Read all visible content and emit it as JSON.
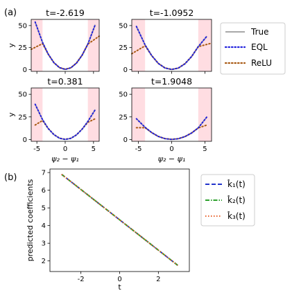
{
  "panel_labels": [
    "(a)",
    "(b)"
  ],
  "colors": {
    "true": "#a8a8a8",
    "eql": "#2222dd",
    "relu": "#a85a14",
    "shade": "#ffdde2",
    "k1": "#2233cc",
    "k2": "#2ca02c",
    "k3": "#e8602a"
  },
  "chart_data": [
    {
      "type": "line",
      "title": "t=-2.619",
      "xlabel": "",
      "ylabel": "y",
      "xlim": [
        -6,
        6
      ],
      "ylim": [
        -2,
        57
      ],
      "x_ticks": [],
      "y_ticks": [
        "0",
        "25",
        "50"
      ],
      "shaded_x_ranges": [
        [
          -6,
          -4
        ],
        [
          4,
          6
        ]
      ],
      "true_curve": {
        "x": [
          -5.3,
          -4,
          -3,
          -2,
          -1,
          0,
          1,
          2,
          3,
          4,
          5.3
        ],
        "y": [
          54,
          31,
          17.6,
          7.9,
          2.2,
          0.2,
          2.0,
          7.4,
          16.4,
          29,
          51
        ]
      },
      "eql_curve": {
        "x": [
          -5.3,
          -4,
          -3,
          -2,
          -1,
          0,
          1,
          2,
          3,
          4,
          5.3
        ],
        "y": [
          54,
          31,
          17.6,
          7.9,
          2.2,
          0.2,
          2.0,
          7.4,
          16.4,
          29,
          51
        ]
      },
      "relu_curve": {
        "x": [
          -6,
          -4,
          -3,
          -2,
          -1,
          0,
          1,
          2,
          3,
          4,
          6
        ],
        "y": [
          23,
          29.5,
          17.5,
          7.8,
          2.3,
          0.4,
          2.1,
          7.5,
          16.6,
          29,
          38
        ]
      }
    },
    {
      "type": "line",
      "title": "t=-1.0952",
      "xlabel": "",
      "ylabel": "",
      "xlim": [
        -6,
        6
      ],
      "ylim": [
        -2,
        57
      ],
      "x_ticks": [],
      "y_ticks": [
        "0",
        "25",
        "50"
      ],
      "shaded_x_ranges": [
        [
          -6,
          -4
        ],
        [
          4,
          6
        ]
      ],
      "true_curve": {
        "x": [
          -5.3,
          -4,
          -3,
          -2,
          -1,
          0,
          1,
          2,
          3,
          4,
          5.3
        ],
        "y": [
          49,
          28,
          15.8,
          7,
          1.8,
          0.1,
          1.7,
          6.6,
          14.8,
          26,
          38
        ]
      },
      "eql_curve": {
        "x": [
          -5.3,
          -4,
          -3,
          -2,
          -1,
          0,
          1,
          2,
          3,
          4,
          5.3
        ],
        "y": [
          49,
          28,
          15.8,
          7,
          1.8,
          0.1,
          1.7,
          6.6,
          14.8,
          26,
          38
        ]
      },
      "relu_curve": {
        "x": [
          -6,
          -4,
          -3,
          -2,
          -1,
          0,
          1,
          2,
          3,
          4,
          6
        ],
        "y": [
          18,
          27,
          15.8,
          7,
          1.9,
          0.2,
          1.8,
          6.8,
          14.9,
          26,
          30
        ]
      }
    },
    {
      "type": "line",
      "title": "t=0.381",
      "xlabel": "ψ₂ − ψ₁",
      "ylabel": "y",
      "xlim": [
        -6,
        6
      ],
      "ylim": [
        -2,
        57
      ],
      "x_ticks": [
        "-5",
        "0",
        "5"
      ],
      "y_ticks": [
        "0",
        "25",
        "50"
      ],
      "shaded_x_ranges": [
        [
          -6,
          -4
        ],
        [
          4,
          6
        ]
      ],
      "true_curve": {
        "x": [
          -5.3,
          -4,
          -3,
          -2,
          -1,
          0,
          1,
          2,
          3,
          4,
          5.3
        ],
        "y": [
          39,
          22,
          12.2,
          5.4,
          1.4,
          0.1,
          1.3,
          5.1,
          11.5,
          20,
          33
        ]
      },
      "eql_curve": {
        "x": [
          -5.3,
          -4,
          -3,
          -2,
          -1,
          0,
          1,
          2,
          3,
          4,
          5.3
        ],
        "y": [
          39,
          22,
          12.2,
          5.4,
          1.4,
          0.1,
          1.3,
          5.1,
          11.5,
          20,
          33
        ]
      },
      "relu_curve": {
        "x": [
          -5.3,
          -4,
          -3,
          -2,
          -1,
          0,
          1,
          2,
          3,
          4,
          5.3
        ],
        "y": [
          16,
          21,
          12.1,
          5.5,
          1.5,
          0.2,
          1.4,
          5.2,
          11.6,
          19,
          23
        ]
      }
    },
    {
      "type": "line",
      "title": "t=1.9048",
      "xlabel": "ψ₂ − ψ₁",
      "ylabel": "",
      "xlim": [
        -6,
        6
      ],
      "ylim": [
        -2,
        57
      ],
      "x_ticks": [
        "-5",
        "0",
        "5"
      ],
      "y_ticks": [
        "0",
        "25",
        "50"
      ],
      "shaded_x_ranges": [
        [
          -6,
          -4
        ],
        [
          4,
          6
        ]
      ],
      "true_curve": {
        "x": [
          -5.3,
          -4,
          -3,
          -2,
          -1,
          0,
          1,
          2,
          3,
          4,
          5.3
        ],
        "y": [
          23,
          13.5,
          7.6,
          3.4,
          0.9,
          0.1,
          0.8,
          3.2,
          7.2,
          12.8,
          25
        ]
      },
      "eql_curve": {
        "x": [
          -5.3,
          -4,
          -3,
          -2,
          -1,
          0,
          1,
          2,
          3,
          4,
          5.3
        ],
        "y": [
          23,
          13.5,
          7.6,
          3.4,
          0.9,
          0.1,
          0.8,
          3.2,
          7.2,
          12.8,
          25
        ]
      },
      "relu_curve": {
        "x": [
          -5.3,
          -4,
          -3,
          -2,
          -1,
          0,
          1,
          2,
          3,
          4,
          5.3
        ],
        "y": [
          13,
          13,
          7.6,
          3.4,
          1.0,
          0.2,
          0.9,
          3.3,
          7.3,
          12.8,
          16
        ]
      }
    },
    {
      "type": "line",
      "title": "",
      "xlabel": "t",
      "ylabel": "predicted coefficients",
      "xlim": [
        -3.6,
        3.6
      ],
      "ylim": [
        1.4,
        7.2
      ],
      "x_ticks": [
        "-2",
        "0",
        "2"
      ],
      "y_ticks": [
        "2",
        "3",
        "4",
        "5",
        "6",
        "7"
      ],
      "series": [
        {
          "name": "k̂₁(t)",
          "x": [
            -3,
            3
          ],
          "y": [
            6.9,
            1.75
          ]
        },
        {
          "name": "k̂₂(t)",
          "x": [
            -3,
            3
          ],
          "y": [
            6.9,
            1.75
          ]
        },
        {
          "name": "k̂₃(t)",
          "x": [
            -3,
            3
          ],
          "y": [
            6.9,
            1.75
          ]
        }
      ]
    }
  ],
  "legend_a": [
    "True",
    "EQL",
    "ReLU"
  ],
  "legend_b": [
    "k̂₁(t)",
    "k̂₂(t)",
    "k̂₃(t)"
  ]
}
